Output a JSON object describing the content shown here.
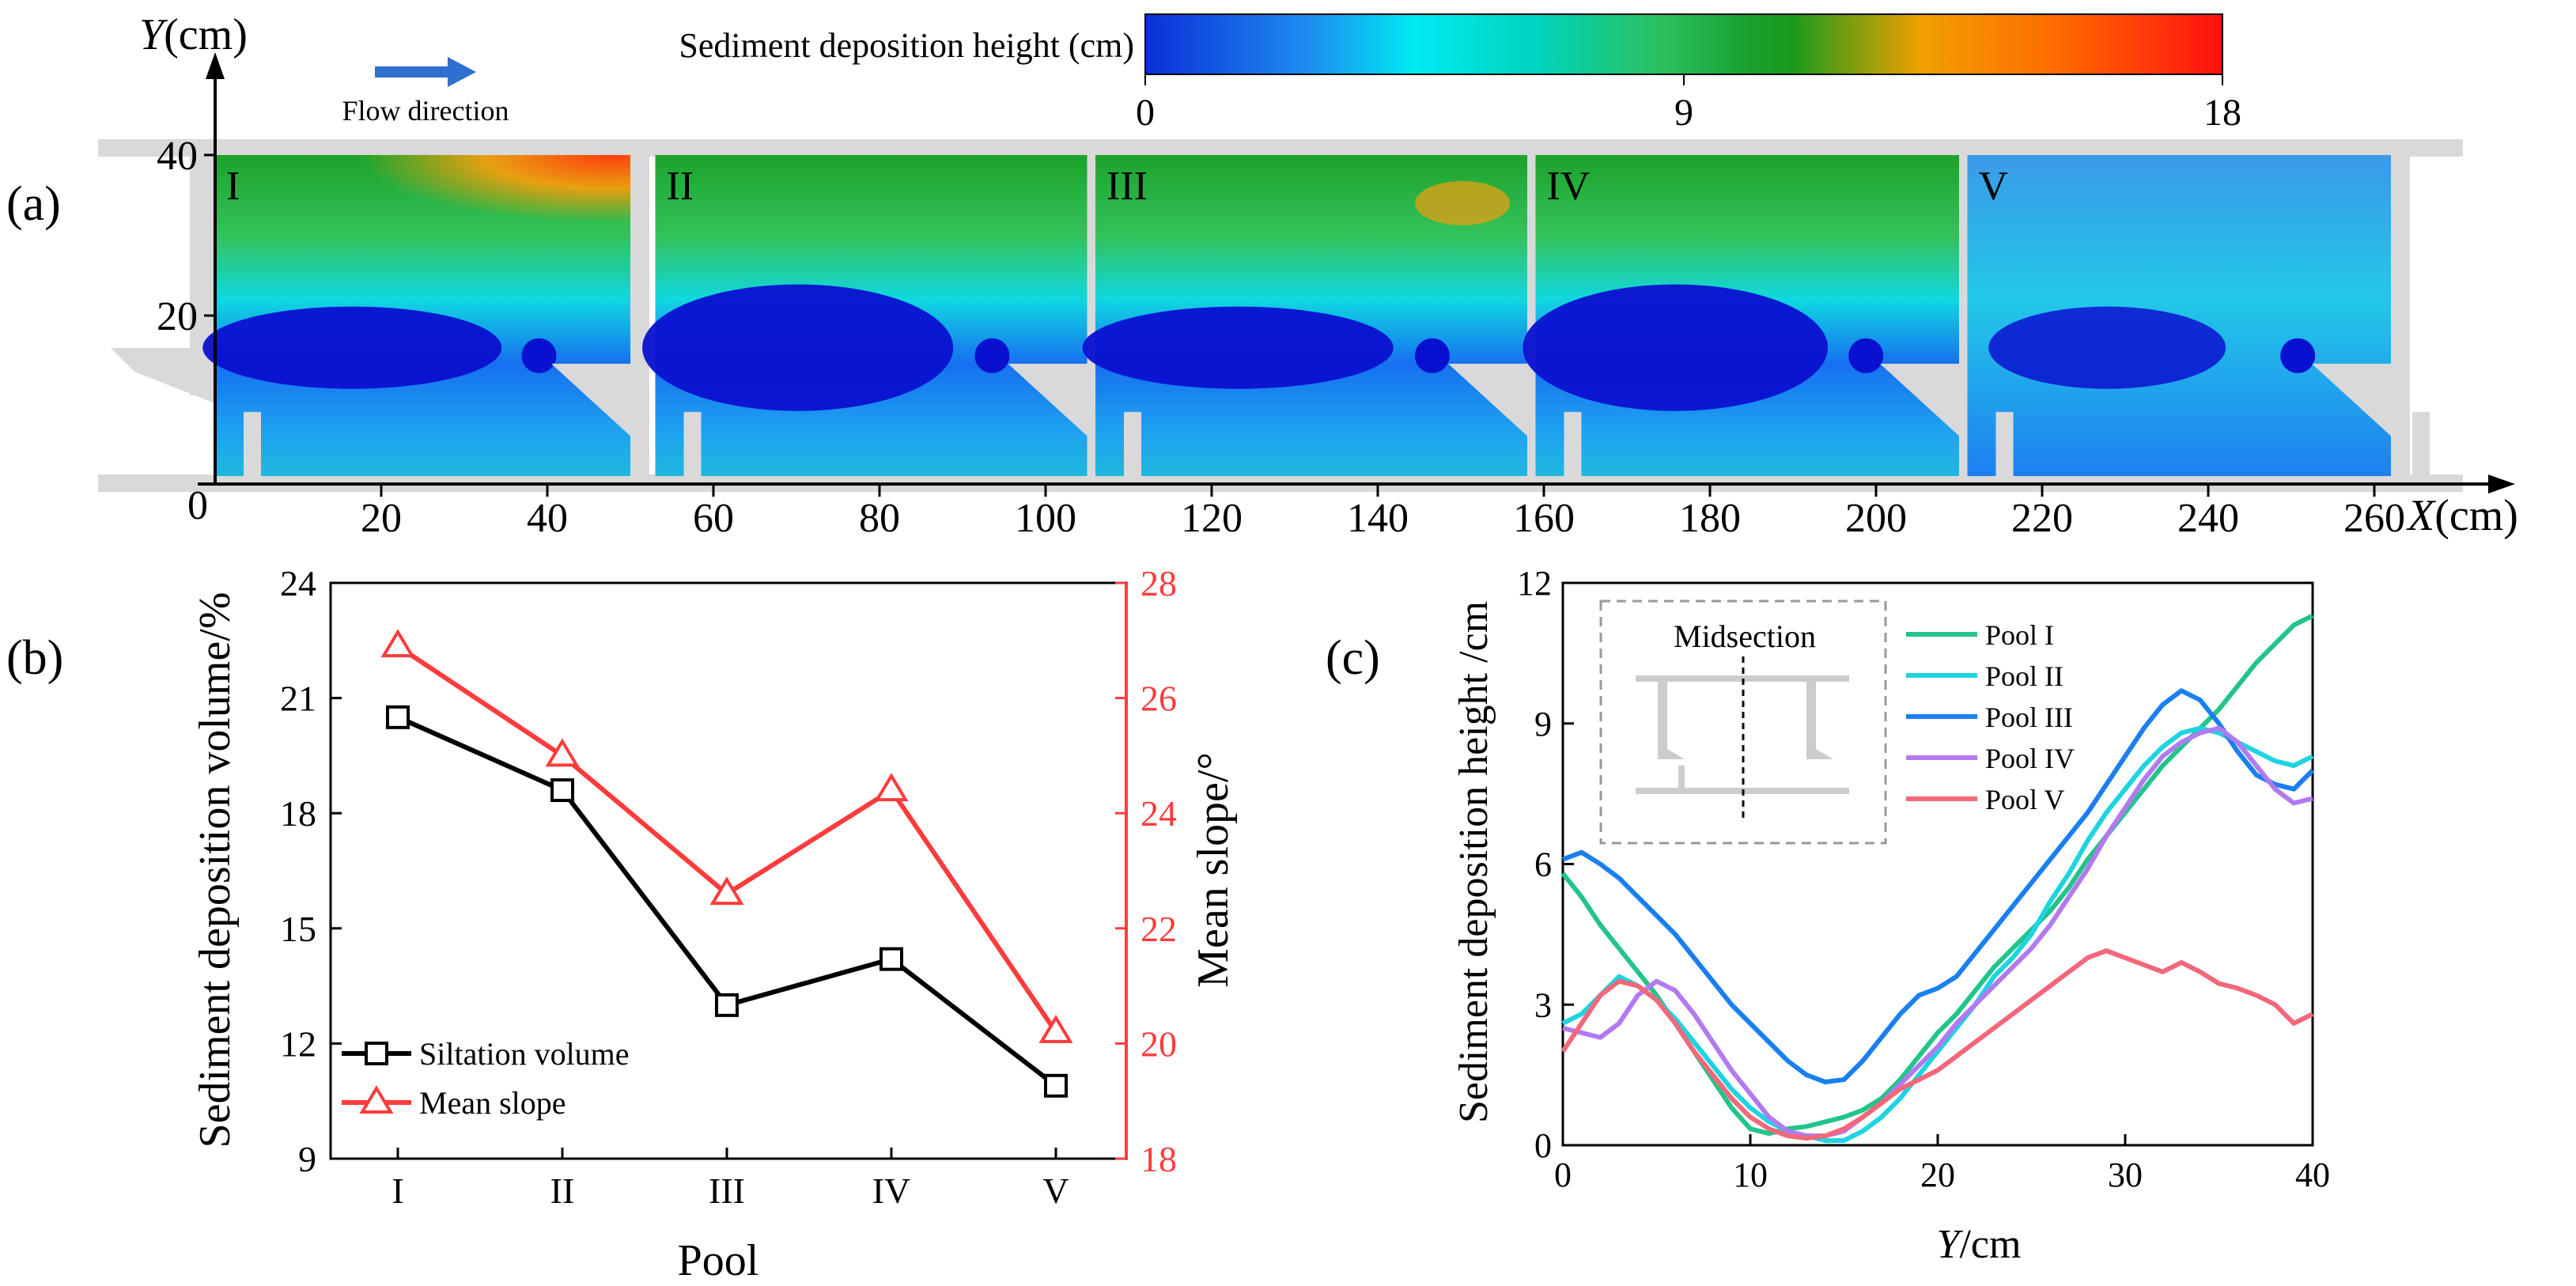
{
  "figure": {
    "panel_labels": [
      "(a)",
      "(b)",
      "(c)"
    ]
  },
  "colors": {
    "black": "#000000",
    "red": "#ff3b3b",
    "walls": "#d9d9d9",
    "arrow": "#2f6fd0",
    "colormap": [
      "#0000c8",
      "#1f7fff",
      "#00f0f0",
      "#20c060",
      "#109020",
      "#ffa000",
      "#ff2000"
    ],
    "series": [
      "#22c48a",
      "#1ed4e0",
      "#1a7ff0",
      "#b27af0",
      "#f2687a"
    ]
  },
  "chart_data": [
    {
      "id": "a",
      "type": "heatmap",
      "title": "Sediment deposition height (cm)",
      "colorbar_ticks": [
        "0",
        "9",
        "18"
      ],
      "colorbar_range": [
        0,
        18
      ],
      "flow_label": "Flow direction",
      "xlabel_var": "X",
      "xlabel_unit": "(cm)",
      "ylabel_var": "Y",
      "ylabel_unit": "(cm)",
      "x_ticks": [
        20,
        40,
        60,
        80,
        100,
        120,
        140,
        160,
        180,
        200,
        220,
        240,
        260
      ],
      "y_ticks": [
        20,
        40
      ],
      "origin_label": "0",
      "xlim": [
        0,
        280
      ],
      "ylim": [
        0,
        40
      ],
      "pools": [
        {
          "label": "I",
          "x_range": [
            0,
            50
          ]
        },
        {
          "label": "II",
          "x_range": [
            53,
            105
          ]
        },
        {
          "label": "III",
          "x_range": [
            106,
            158
          ]
        },
        {
          "label": "IV",
          "x_range": [
            159,
            210
          ]
        },
        {
          "label": "V",
          "x_range": [
            211,
            262
          ]
        }
      ]
    },
    {
      "id": "b",
      "type": "line",
      "xlabel": "Pool",
      "ylabel": "Sediment deposition volume/%",
      "ylabel2": "Mean slope/°",
      "categories": [
        "I",
        "II",
        "III",
        "IV",
        "V"
      ],
      "ylim": [
        9,
        24
      ],
      "yticks": [
        9,
        12,
        15,
        18,
        21,
        24
      ],
      "y2lim": [
        18,
        28
      ],
      "y2ticks": [
        18,
        20,
        22,
        24,
        26,
        28
      ],
      "series": [
        {
          "name": "Siltation volume",
          "axis": "left",
          "marker": "square",
          "values": [
            20.5,
            18.6,
            13.0,
            14.2,
            10.9
          ]
        },
        {
          "name": "Mean slope",
          "axis": "right",
          "marker": "triangle",
          "values": [
            26.9,
            25.0,
            22.6,
            24.4,
            20.2
          ]
        }
      ],
      "legend": "bottom-left"
    },
    {
      "id": "c",
      "type": "line",
      "xlabel_var": "Y",
      "xlabel_unit": "/cm",
      "ylabel": "Sediment deposition height /cm",
      "xlim": [
        0,
        40
      ],
      "xticks": [
        0,
        10,
        20,
        30,
        40
      ],
      "ylim": [
        0,
        12
      ],
      "yticks": [
        0,
        3,
        6,
        9,
        12
      ],
      "inset_label": "Midsection",
      "legend": "top-right",
      "series": [
        {
          "name": "Pool I",
          "x": [
            0,
            1,
            2,
            3,
            4,
            5,
            6,
            7,
            8,
            9,
            10,
            11,
            12,
            13,
            14,
            15,
            16,
            17,
            18,
            19,
            20,
            21,
            22,
            23,
            24,
            25,
            26,
            27,
            28,
            29,
            30,
            31,
            32,
            33,
            34,
            35,
            36,
            37,
            38,
            39,
            40
          ],
          "y": [
            5.8,
            5.3,
            4.7,
            4.2,
            3.7,
            3.2,
            2.6,
            2.0,
            1.4,
            0.8,
            0.35,
            0.25,
            0.35,
            0.4,
            0.5,
            0.6,
            0.75,
            1.0,
            1.4,
            1.9,
            2.4,
            2.8,
            3.3,
            3.8,
            4.2,
            4.6,
            5.0,
            5.5,
            6.1,
            6.6,
            7.1,
            7.6,
            8.1,
            8.5,
            8.9,
            9.3,
            9.8,
            10.3,
            10.7,
            11.1,
            11.3
          ]
        },
        {
          "name": "Pool II",
          "x": [
            0,
            1,
            2,
            3,
            4,
            5,
            6,
            7,
            8,
            9,
            10,
            11,
            12,
            13,
            14,
            15,
            16,
            17,
            18,
            19,
            20,
            21,
            22,
            23,
            24,
            25,
            26,
            27,
            28,
            29,
            30,
            31,
            32,
            33,
            34,
            35,
            36,
            37,
            38,
            39,
            40
          ],
          "y": [
            2.6,
            2.8,
            3.2,
            3.6,
            3.4,
            3.1,
            2.7,
            2.2,
            1.7,
            1.2,
            0.8,
            0.5,
            0.3,
            0.2,
            0.1,
            0.1,
            0.3,
            0.6,
            1.0,
            1.5,
            2.0,
            2.5,
            3.0,
            3.6,
            4.0,
            4.5,
            5.2,
            5.8,
            6.5,
            7.1,
            7.6,
            8.1,
            8.5,
            8.8,
            8.9,
            8.8,
            8.6,
            8.4,
            8.2,
            8.1,
            8.3
          ]
        },
        {
          "name": "Pool III",
          "x": [
            0,
            1,
            2,
            3,
            4,
            5,
            6,
            7,
            8,
            9,
            10,
            11,
            12,
            13,
            14,
            15,
            16,
            17,
            18,
            19,
            20,
            21,
            22,
            23,
            24,
            25,
            26,
            27,
            28,
            29,
            30,
            31,
            32,
            33,
            34,
            35,
            36,
            37,
            38,
            39,
            40
          ],
          "y": [
            6.1,
            6.25,
            6.0,
            5.7,
            5.3,
            4.9,
            4.5,
            4.0,
            3.5,
            3.0,
            2.6,
            2.2,
            1.8,
            1.5,
            1.35,
            1.4,
            1.8,
            2.3,
            2.8,
            3.2,
            3.35,
            3.6,
            4.1,
            4.6,
            5.1,
            5.6,
            6.1,
            6.6,
            7.1,
            7.7,
            8.3,
            8.9,
            9.4,
            9.7,
            9.5,
            9.0,
            8.4,
            7.9,
            7.7,
            7.6,
            8.0
          ]
        },
        {
          "name": "Pool IV",
          "x": [
            0,
            1,
            2,
            3,
            4,
            5,
            6,
            7,
            8,
            9,
            10,
            11,
            12,
            13,
            14,
            15,
            16,
            17,
            18,
            19,
            20,
            21,
            22,
            23,
            24,
            25,
            26,
            27,
            28,
            29,
            30,
            31,
            32,
            33,
            34,
            35,
            36,
            37,
            38,
            39,
            40
          ],
          "y": [
            2.5,
            2.4,
            2.3,
            2.6,
            3.2,
            3.5,
            3.3,
            2.8,
            2.2,
            1.6,
            1.1,
            0.6,
            0.3,
            0.2,
            0.2,
            0.3,
            0.6,
            0.9,
            1.3,
            1.7,
            2.1,
            2.6,
            3.0,
            3.4,
            3.8,
            4.2,
            4.7,
            5.3,
            5.9,
            6.6,
            7.2,
            7.8,
            8.3,
            8.6,
            8.8,
            8.9,
            8.6,
            8.1,
            7.6,
            7.3,
            7.4
          ]
        },
        {
          "name": "Pool V",
          "x": [
            0,
            1,
            2,
            3,
            4,
            5,
            6,
            7,
            8,
            9,
            10,
            11,
            12,
            13,
            14,
            15,
            16,
            17,
            18,
            19,
            20,
            21,
            22,
            23,
            24,
            25,
            26,
            27,
            28,
            29,
            30,
            31,
            32,
            33,
            34,
            35,
            36,
            37,
            38,
            39,
            40
          ],
          "y": [
            2.0,
            2.6,
            3.2,
            3.5,
            3.4,
            3.1,
            2.6,
            2.0,
            1.5,
            1.0,
            0.6,
            0.35,
            0.2,
            0.15,
            0.2,
            0.35,
            0.6,
            0.9,
            1.2,
            1.4,
            1.6,
            1.9,
            2.2,
            2.5,
            2.8,
            3.1,
            3.4,
            3.7,
            4.0,
            4.15,
            4.0,
            3.85,
            3.7,
            3.9,
            3.7,
            3.45,
            3.35,
            3.2,
            3.0,
            2.6,
            2.8
          ]
        }
      ]
    }
  ]
}
